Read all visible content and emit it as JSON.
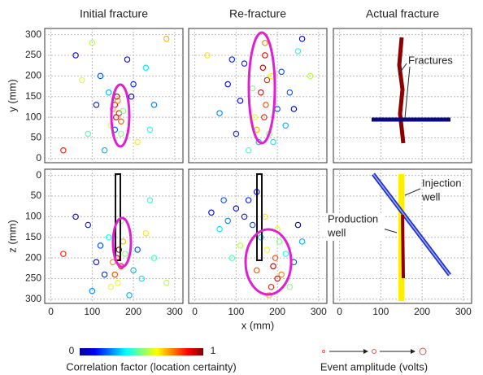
{
  "chart_data": [
    {
      "type": "scatter",
      "title": "Initial fracture",
      "ylabel": "y (mm)",
      "xlim": [
        -15,
        320
      ],
      "ylim": [
        -10,
        315
      ],
      "xticks": [
        0,
        100,
        200,
        300
      ],
      "yticks": [
        0,
        50,
        100,
        150,
        200,
        250,
        300
      ],
      "xtick_labels": false,
      "ytick_labels": true,
      "grid": true,
      "x": [
        160,
        155,
        165,
        170,
        150,
        158,
        162,
        145,
        175,
        140,
        120,
        200,
        90,
        230,
        60,
        250,
        100,
        210,
        130,
        185,
        280,
        30,
        170,
        155,
        110,
        240,
        75,
        195
      ],
      "y": [
        150,
        130,
        110,
        90,
        120,
        100,
        140,
        80,
        115,
        160,
        200,
        180,
        60,
        220,
        250,
        130,
        280,
        40,
        20,
        240,
        290,
        20,
        60,
        70,
        130,
        70,
        190,
        150
      ],
      "c": [
        0.95,
        0.9,
        0.85,
        0.8,
        0.7,
        0.9,
        0.75,
        0.6,
        0.5,
        0.3,
        0.2,
        0.15,
        0.45,
        0.35,
        0.1,
        0.25,
        0.55,
        0.65,
        0.3,
        0.1,
        0.7,
        0.85,
        0.5,
        0.2,
        0.15,
        0.4,
        0.6,
        0.1
      ]
    },
    {
      "type": "scatter",
      "title": "Re-fracture",
      "xlim": [
        -15,
        320
      ],
      "ylim": [
        -10,
        315
      ],
      "xticks": [
        0,
        100,
        200,
        300
      ],
      "yticks": [
        0,
        50,
        100,
        150,
        200,
        250,
        300
      ],
      "xtick_labels": false,
      "ytick_labels": false,
      "grid": true,
      "x": [
        170,
        165,
        175,
        160,
        172,
        168,
        150,
        185,
        140,
        200,
        120,
        220,
        80,
        250,
        60,
        280,
        100,
        230,
        30,
        190,
        260,
        130,
        170,
        155,
        110,
        210,
        90,
        145,
        240,
        180
      ],
      "y": [
        250,
        220,
        190,
        160,
        130,
        100,
        70,
        200,
        170,
        120,
        230,
        80,
        180,
        260,
        110,
        200,
        60,
        160,
        250,
        40,
        290,
        20,
        280,
        40,
        140,
        210,
        240,
        100,
        120,
        60
      ],
      "c": [
        0.9,
        0.95,
        0.85,
        0.9,
        0.8,
        0.85,
        0.7,
        0.6,
        0.5,
        0.2,
        0.15,
        0.3,
        0.1,
        0.4,
        0.25,
        0.55,
        0.15,
        0.2,
        0.65,
        0.35,
        0.1,
        0.45,
        0.75,
        0.3,
        0.1,
        0.2,
        0.15,
        0.6,
        0.05,
        0.5
      ]
    },
    {
      "type": "image",
      "title": "Actual fracture",
      "xlim": [
        -15,
        320
      ],
      "ylim": [
        -10,
        315
      ],
      "xticks": [
        0,
        100,
        200,
        300
      ],
      "yticks": [
        0,
        50,
        100,
        150,
        200,
        250,
        300
      ],
      "xtick_labels": false,
      "ytick_labels": false,
      "grid": true,
      "annotation": "Fractures"
    },
    {
      "type": "scatter",
      "ylabel": "z (mm)",
      "xlim": [
        -15,
        320
      ],
      "ylim": [
        310,
        -15
      ],
      "xticks": [
        0,
        100,
        200,
        300
      ],
      "yticks": [
        0,
        50,
        100,
        150,
        200,
        250,
        300
      ],
      "xtick_labels": true,
      "ytick_labels": true,
      "grid": true,
      "x": [
        165,
        160,
        170,
        155,
        175,
        150,
        162,
        180,
        140,
        200,
        120,
        220,
        90,
        250,
        60,
        280,
        100,
        230,
        30,
        190,
        130,
        170,
        110,
        210,
        145,
        240
      ],
      "y": [
        180,
        200,
        220,
        240,
        160,
        210,
        260,
        190,
        150,
        230,
        170,
        250,
        120,
        200,
        100,
        260,
        280,
        140,
        190,
        290,
        240,
        110,
        210,
        180,
        270,
        60
      ],
      "c": [
        0.95,
        0.9,
        0.85,
        0.8,
        0.7,
        0.75,
        0.6,
        0.5,
        0.4,
        0.3,
        0.2,
        0.35,
        0.15,
        0.45,
        0.1,
        0.55,
        0.25,
        0.65,
        0.85,
        0.3,
        0.15,
        0.5,
        0.1,
        0.2,
        0.6,
        0.4
      ]
    },
    {
      "type": "scatter",
      "xlabel": "x (mm)",
      "xlim": [
        -15,
        320
      ],
      "ylim": [
        310,
        -15
      ],
      "xticks": [
        0,
        100,
        200,
        300
      ],
      "yticks": [
        0,
        50,
        100,
        150,
        200,
        250,
        300
      ],
      "xtick_labels": true,
      "ytick_labels": false,
      "grid": true,
      "x": [
        190,
        200,
        185,
        195,
        210,
        180,
        175,
        205,
        160,
        140,
        120,
        100,
        80,
        60,
        40,
        220,
        240,
        260,
        130,
        150,
        110,
        90,
        170,
        230,
        70,
        200,
        150,
        250
      ],
      "y": [
        220,
        250,
        270,
        200,
        240,
        290,
        180,
        160,
        150,
        120,
        100,
        80,
        110,
        130,
        90,
        190,
        210,
        160,
        60,
        40,
        170,
        200,
        100,
        270,
        60,
        130,
        230,
        120
      ],
      "c": [
        0.95,
        0.9,
        0.85,
        0.8,
        0.75,
        0.7,
        0.6,
        0.5,
        0.3,
        0.2,
        0.15,
        0.1,
        0.25,
        0.35,
        0.1,
        0.4,
        0.2,
        0.3,
        0.15,
        0.1,
        0.55,
        0.45,
        0.65,
        0.5,
        0.2,
        0.6,
        0.8,
        0.05
      ]
    },
    {
      "type": "image",
      "xlim": [
        -15,
        320
      ],
      "ylim": [
        310,
        -15
      ],
      "xticks": [
        0,
        100,
        200,
        300
      ],
      "yticks": [
        0,
        50,
        100,
        150,
        200,
        250,
        300
      ],
      "xtick_labels": true,
      "ytick_labels": false,
      "grid": true,
      "annotations": [
        [
          "Injection",
          "well"
        ],
        [
          "Production",
          "well"
        ]
      ]
    }
  ],
  "legend": {
    "colorbar": {
      "ticks": [
        0,
        1
      ],
      "label": "Correlation factor (location certainty)"
    },
    "size": {
      "label": "Event amplitude (volts)"
    }
  }
}
